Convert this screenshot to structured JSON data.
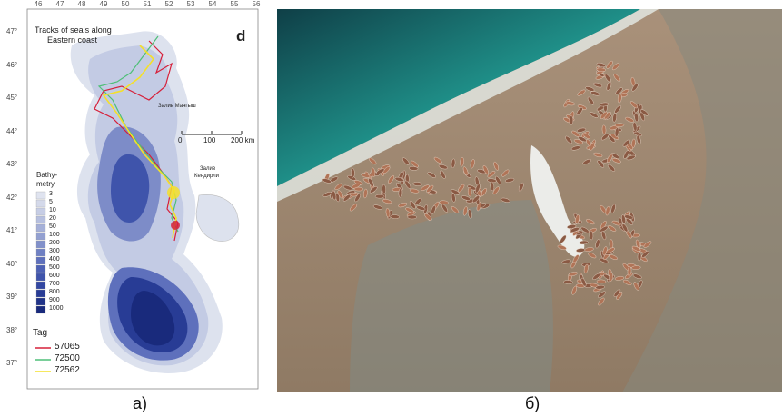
{
  "map": {
    "title_line1": "Tracks of seals along",
    "title_line2": "Eastern coast",
    "panel_letter": "d",
    "lon_ticks": [
      "46",
      "47",
      "48",
      "49",
      "50",
      "51",
      "52",
      "53",
      "54",
      "55",
      "56"
    ],
    "lat_ticks": [
      "47°",
      "46°",
      "45°",
      "44°",
      "43°",
      "42°",
      "41°",
      "40°",
      "39°",
      "38°",
      "37°"
    ],
    "scale": {
      "l0": "0",
      "l1": "100",
      "l2": "200 km"
    },
    "place_labels": {
      "bay1": "Залив Мангыш",
      "bay2_line1": "Залив",
      "bay2_line2": "Кендирли"
    },
    "bathymetry": {
      "title_line1": "Bathy-",
      "title_line2": "metry",
      "levels": [
        "3",
        "5",
        "10",
        "20",
        "50",
        "100",
        "200",
        "300",
        "400",
        "500",
        "600",
        "700",
        "800",
        "900",
        "1000"
      ],
      "colors": [
        "#dfe3ef",
        "#d4d9ea",
        "#c6cde5",
        "#b6bfdf",
        "#a5b0d8",
        "#93a0d1",
        "#8190ca",
        "#6f80c3",
        "#5e70bc",
        "#4d61b4",
        "#3f54ab",
        "#3247a1",
        "#283c95",
        "#203388",
        "#192a7c"
      ]
    },
    "tag": {
      "title": "Tag",
      "items": [
        {
          "label": "57065",
          "color": "#d6203a"
        },
        {
          "label": "72500",
          "color": "#4fbf78"
        },
        {
          "label": "72562",
          "color": "#f4e02a"
        }
      ]
    }
  },
  "captions": {
    "left": "а)",
    "right": "б)"
  },
  "photo": {
    "sea": "#1f8f88",
    "sand": "#a58d6e",
    "water": "#7f8f8c",
    "foam": "#ffffff",
    "seal": "#a96b52"
  }
}
